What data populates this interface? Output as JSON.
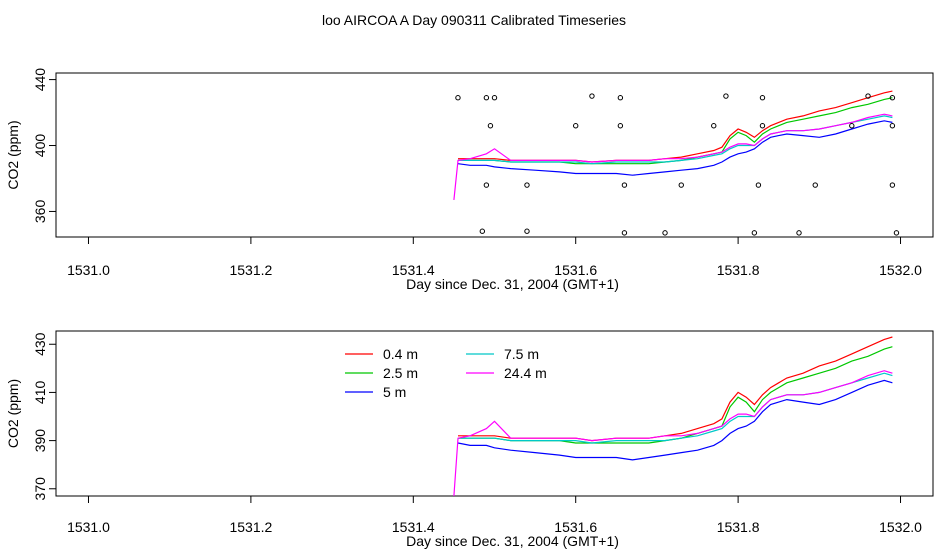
{
  "figure": {
    "title": "loo AIRCOA A  Day 090311  Calibrated Timeseries"
  },
  "chart_data": [
    {
      "type": "line",
      "xlabel": "Day since Dec. 31, 2004 (GMT+1)",
      "ylabel": "CO2 (ppm)",
      "xlim": [
        1530.96,
        1532.04
      ],
      "ylim": [
        344.5,
        444
      ],
      "xticks": [
        "1531.0",
        "1531.2",
        "1531.4",
        "1531.6",
        "1531.8",
        "1532.0"
      ],
      "yticks": [
        "360",
        "400",
        "440"
      ],
      "grid": false,
      "legend": "none",
      "series": [
        {
          "color": "#ff0000",
          "x": [
            1531.455,
            1531.47,
            1531.49,
            1531.5,
            1531.52,
            1531.55,
            1531.58,
            1531.6,
            1531.62,
            1531.65,
            1531.67,
            1531.69,
            1531.71,
            1531.73,
            1531.75,
            1531.77,
            1531.78,
            1531.79,
            1531.8,
            1531.81,
            1531.82,
            1531.83,
            1531.84,
            1531.85,
            1531.86,
            1531.88,
            1531.9,
            1531.92,
            1531.94,
            1531.96,
            1531.98,
            1531.99
          ],
          "y": [
            392,
            392,
            392,
            392,
            391,
            391,
            391,
            391,
            390,
            391,
            391,
            391,
            392,
            393,
            395,
            397,
            399,
            406,
            410,
            408,
            405,
            409,
            412,
            414,
            416,
            418,
            421,
            423,
            426,
            429,
            432,
            433
          ]
        },
        {
          "color": "#00c800",
          "x": [
            1531.455,
            1531.47,
            1531.49,
            1531.5,
            1531.52,
            1531.55,
            1531.58,
            1531.6,
            1531.62,
            1531.65,
            1531.67,
            1531.69,
            1531.71,
            1531.73,
            1531.75,
            1531.77,
            1531.78,
            1531.79,
            1531.8,
            1531.81,
            1531.82,
            1531.83,
            1531.84,
            1531.85,
            1531.86,
            1531.88,
            1531.9,
            1531.92,
            1531.94,
            1531.96,
            1531.98,
            1531.99
          ],
          "y": [
            391,
            391,
            391,
            391,
            390,
            390,
            390,
            389,
            389,
            389,
            389,
            389,
            390,
            391,
            393,
            395,
            396,
            404,
            408,
            406,
            402,
            407,
            410,
            412,
            414,
            416,
            418,
            420,
            423,
            425,
            428,
            429
          ]
        },
        {
          "color": "#0000ff",
          "x": [
            1531.455,
            1531.47,
            1531.49,
            1531.5,
            1531.52,
            1531.55,
            1531.58,
            1531.6,
            1531.62,
            1531.65,
            1531.67,
            1531.69,
            1531.71,
            1531.73,
            1531.75,
            1531.77,
            1531.78,
            1531.79,
            1531.8,
            1531.81,
            1531.82,
            1531.83,
            1531.84,
            1531.85,
            1531.86,
            1531.88,
            1531.9,
            1531.92,
            1531.94,
            1531.96,
            1531.98,
            1531.99
          ],
          "y": [
            389,
            388,
            388,
            387,
            386,
            385,
            384,
            383,
            383,
            383,
            382,
            383,
            384,
            385,
            386,
            388,
            390,
            393,
            395,
            396,
            398,
            402,
            405,
            406,
            407,
            406,
            405,
            407,
            410,
            413,
            415,
            414
          ]
        },
        {
          "color": "#00c8c8",
          "x": [
            1531.455,
            1531.47,
            1531.49,
            1531.5,
            1531.52,
            1531.55,
            1531.58,
            1531.6,
            1531.62,
            1531.65,
            1531.67,
            1531.69,
            1531.71,
            1531.73,
            1531.75,
            1531.77,
            1531.78,
            1531.79,
            1531.8,
            1531.81,
            1531.82,
            1531.83,
            1531.84,
            1531.85,
            1531.86,
            1531.88,
            1531.9,
            1531.92,
            1531.94,
            1531.96,
            1531.98,
            1531.99
          ],
          "y": [
            391,
            391,
            391,
            391,
            390,
            390,
            390,
            390,
            389,
            390,
            390,
            390,
            390,
            391,
            392,
            394,
            395,
            398,
            400,
            400,
            400,
            404,
            407,
            408,
            409,
            409,
            410,
            412,
            414,
            416,
            418,
            417
          ]
        },
        {
          "color": "#ff00ff",
          "x": [
            1531.45,
            1531.455,
            1531.47,
            1531.49,
            1531.5,
            1531.52,
            1531.55,
            1531.58,
            1531.6,
            1531.62,
            1531.65,
            1531.67,
            1531.69,
            1531.71,
            1531.73,
            1531.75,
            1531.77,
            1531.78,
            1531.79,
            1531.8,
            1531.81,
            1531.82,
            1531.83,
            1531.84,
            1531.85,
            1531.86,
            1531.88,
            1531.9,
            1531.92,
            1531.94,
            1531.96,
            1531.98,
            1531.99
          ],
          "y": [
            367,
            391,
            392,
            395,
            398,
            391,
            391,
            391,
            391,
            390,
            391,
            391,
            391,
            392,
            392,
            393,
            395,
            396,
            399,
            401,
            401,
            400,
            404,
            407,
            408,
            409,
            409,
            410,
            412,
            414,
            417,
            419,
            418
          ]
        }
      ],
      "points": {
        "x": [
          1531.455,
          1531.49,
          1531.5,
          1531.62,
          1531.655,
          1531.785,
          1531.83,
          1531.96,
          1531.99,
          1531.495,
          1531.6,
          1531.655,
          1531.77,
          1531.83,
          1531.94,
          1531.99,
          1531.49,
          1531.54,
          1531.66,
          1531.73,
          1531.825,
          1531.895,
          1531.99,
          1531.485,
          1531.54,
          1531.66,
          1531.71,
          1531.82,
          1531.875,
          1531.995
        ],
        "y": [
          429,
          429,
          429,
          430,
          429,
          430,
          429,
          430,
          429,
          412,
          412,
          412,
          412,
          412,
          412,
          412,
          376,
          376,
          376,
          376,
          376,
          376,
          376,
          348,
          348,
          347,
          347,
          347,
          347,
          347
        ]
      }
    },
    {
      "type": "line",
      "xlabel": "Day since Dec. 31, 2004 (GMT+1)",
      "ylabel": "CO2 (ppm)",
      "xlim": [
        1530.96,
        1532.04
      ],
      "ylim": [
        367,
        435.5
      ],
      "xticks": [
        "1531.0",
        "1531.2",
        "1531.4",
        "1531.6",
        "1531.8",
        "1532.0"
      ],
      "yticks": [
        "370",
        "390",
        "410",
        "430"
      ],
      "grid": false,
      "legend": "top-center",
      "series": [
        {
          "name": "0.4 m",
          "color": "#ff0000",
          "x": [
            1531.455,
            1531.47,
            1531.49,
            1531.5,
            1531.52,
            1531.55,
            1531.58,
            1531.6,
            1531.62,
            1531.65,
            1531.67,
            1531.69,
            1531.71,
            1531.73,
            1531.75,
            1531.77,
            1531.78,
            1531.79,
            1531.8,
            1531.81,
            1531.82,
            1531.83,
            1531.84,
            1531.85,
            1531.86,
            1531.88,
            1531.9,
            1531.92,
            1531.94,
            1531.96,
            1531.98,
            1531.99
          ],
          "y": [
            392,
            392,
            392,
            392,
            391,
            391,
            391,
            391,
            390,
            391,
            391,
            391,
            392,
            393,
            395,
            397,
            399,
            406,
            410,
            408,
            405,
            409,
            412,
            414,
            416,
            418,
            421,
            423,
            426,
            429,
            432,
            433
          ]
        },
        {
          "name": "2.5 m",
          "color": "#00c800",
          "x": [
            1531.455,
            1531.47,
            1531.49,
            1531.5,
            1531.52,
            1531.55,
            1531.58,
            1531.6,
            1531.62,
            1531.65,
            1531.67,
            1531.69,
            1531.71,
            1531.73,
            1531.75,
            1531.77,
            1531.78,
            1531.79,
            1531.8,
            1531.81,
            1531.82,
            1531.83,
            1531.84,
            1531.85,
            1531.86,
            1531.88,
            1531.9,
            1531.92,
            1531.94,
            1531.96,
            1531.98,
            1531.99
          ],
          "y": [
            391,
            391,
            391,
            391,
            390,
            390,
            390,
            389,
            389,
            389,
            389,
            389,
            390,
            391,
            393,
            395,
            396,
            404,
            408,
            406,
            402,
            407,
            410,
            412,
            414,
            416,
            418,
            420,
            423,
            425,
            428,
            429
          ]
        },
        {
          "name": "5 m",
          "color": "#0000ff",
          "x": [
            1531.455,
            1531.47,
            1531.49,
            1531.5,
            1531.52,
            1531.55,
            1531.58,
            1531.6,
            1531.62,
            1531.65,
            1531.67,
            1531.69,
            1531.71,
            1531.73,
            1531.75,
            1531.77,
            1531.78,
            1531.79,
            1531.8,
            1531.81,
            1531.82,
            1531.83,
            1531.84,
            1531.85,
            1531.86,
            1531.88,
            1531.9,
            1531.92,
            1531.94,
            1531.96,
            1531.98,
            1531.99
          ],
          "y": [
            389,
            388,
            388,
            387,
            386,
            385,
            384,
            383,
            383,
            383,
            382,
            383,
            384,
            385,
            386,
            388,
            390,
            393,
            395,
            396,
            398,
            402,
            405,
            406,
            407,
            406,
            405,
            407,
            410,
            413,
            415,
            414
          ]
        },
        {
          "name": "7.5 m",
          "color": "#00c8c8",
          "x": [
            1531.455,
            1531.47,
            1531.49,
            1531.5,
            1531.52,
            1531.55,
            1531.58,
            1531.6,
            1531.62,
            1531.65,
            1531.67,
            1531.69,
            1531.71,
            1531.73,
            1531.75,
            1531.77,
            1531.78,
            1531.79,
            1531.8,
            1531.81,
            1531.82,
            1531.83,
            1531.84,
            1531.85,
            1531.86,
            1531.88,
            1531.9,
            1531.92,
            1531.94,
            1531.96,
            1531.98,
            1531.99
          ],
          "y": [
            391,
            391,
            391,
            391,
            390,
            390,
            390,
            390,
            389,
            390,
            390,
            390,
            390,
            391,
            392,
            394,
            395,
            398,
            400,
            400,
            400,
            404,
            407,
            408,
            409,
            409,
            410,
            412,
            414,
            416,
            418,
            417
          ]
        },
        {
          "name": "24.4 m",
          "color": "#ff00ff",
          "x": [
            1531.45,
            1531.455,
            1531.47,
            1531.49,
            1531.5,
            1531.52,
            1531.55,
            1531.58,
            1531.6,
            1531.62,
            1531.65,
            1531.67,
            1531.69,
            1531.71,
            1531.73,
            1531.75,
            1531.77,
            1531.78,
            1531.79,
            1531.8,
            1531.81,
            1531.82,
            1531.83,
            1531.84,
            1531.85,
            1531.86,
            1531.88,
            1531.9,
            1531.92,
            1531.94,
            1531.96,
            1531.98,
            1531.99
          ],
          "y": [
            367,
            391,
            392,
            395,
            398,
            391,
            391,
            391,
            391,
            390,
            391,
            391,
            391,
            392,
            392,
            393,
            395,
            396,
            399,
            401,
            401,
            400,
            404,
            407,
            408,
            409,
            409,
            410,
            412,
            414,
            417,
            419,
            418
          ]
        }
      ]
    }
  ]
}
